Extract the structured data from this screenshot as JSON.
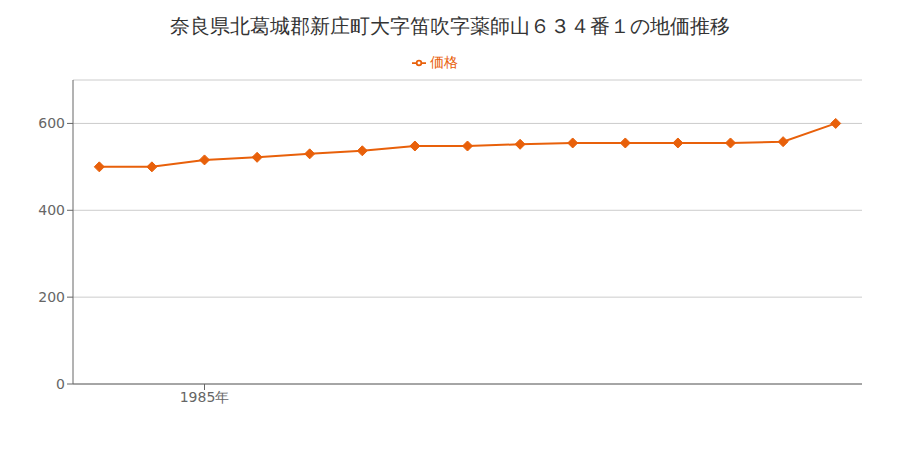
{
  "chart_data": {
    "type": "line",
    "title": "奈良県北葛城郡新庄町大字笛吹字薬師山６３４番１の地価推移",
    "x": [
      1983,
      1984,
      1985,
      1986,
      1987,
      1988,
      1989,
      1990,
      1991,
      1992,
      1993,
      1994,
      1995,
      1996,
      1997
    ],
    "series": [
      {
        "name": "価格",
        "color": "#e8600a",
        "marker": "diamond",
        "values": [
          500,
          500,
          516,
          522,
          530,
          537,
          548,
          548,
          552,
          555,
          555,
          555,
          555,
          558,
          600
        ]
      }
    ],
    "xlim": [
      1982.5,
      1997.5
    ],
    "xticks": [
      {
        "value": 1985,
        "label": "1985年"
      }
    ],
    "ylim": [
      0,
      700
    ],
    "yticks": [
      0,
      200,
      400,
      600
    ],
    "grid": true,
    "legend": "top"
  }
}
